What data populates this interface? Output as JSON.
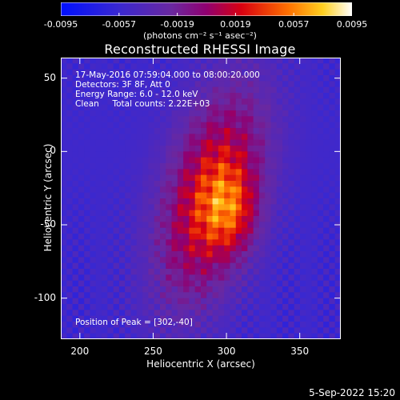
{
  "colorbar": {
    "ticks": [
      "-0.0095",
      "-0.0057",
      "-0.0019",
      "0.0019",
      "0.0057",
      "0.0095"
    ],
    "unit_text": "(photons cm⁻² s⁻¹ asec⁻²)"
  },
  "title": "Reconstructed RHESSI Image",
  "annotations": {
    "time": "17-May-2016 07:59:04.000 to 08:00:20.000",
    "detectors": "Detectors: 3F 8F, Att 0",
    "energy": "Energy Range: 6.0 - 12.0 keV",
    "method": "Clean     Total counts: 2.22E+03",
    "peak": "Position of Peak = [302,-40]"
  },
  "datestamp": "5-Sep-2022 15:20",
  "chart_data": {
    "type": "heatmap",
    "title": "Reconstructed RHESSI Image",
    "xlabel": "Heliocentric X (arcsec)",
    "ylabel": "Heliocentric Y (arcsec)",
    "xlim": [
      187,
      378
    ],
    "ylim": [
      -128,
      64
    ],
    "xticks": [
      200,
      250,
      300,
      350
    ],
    "yticks": [
      50,
      0,
      -50,
      -100
    ],
    "color_range": [
      -0.0095,
      0.0095
    ],
    "colormap": "rainbow-blue-purple-red-yellow-white",
    "peak_position": [
      302,
      -40
    ],
    "source_center": [
      290,
      -30
    ],
    "source_semi_axes_arcsec": [
      38,
      88
    ],
    "source_tilt_deg": -15
  }
}
